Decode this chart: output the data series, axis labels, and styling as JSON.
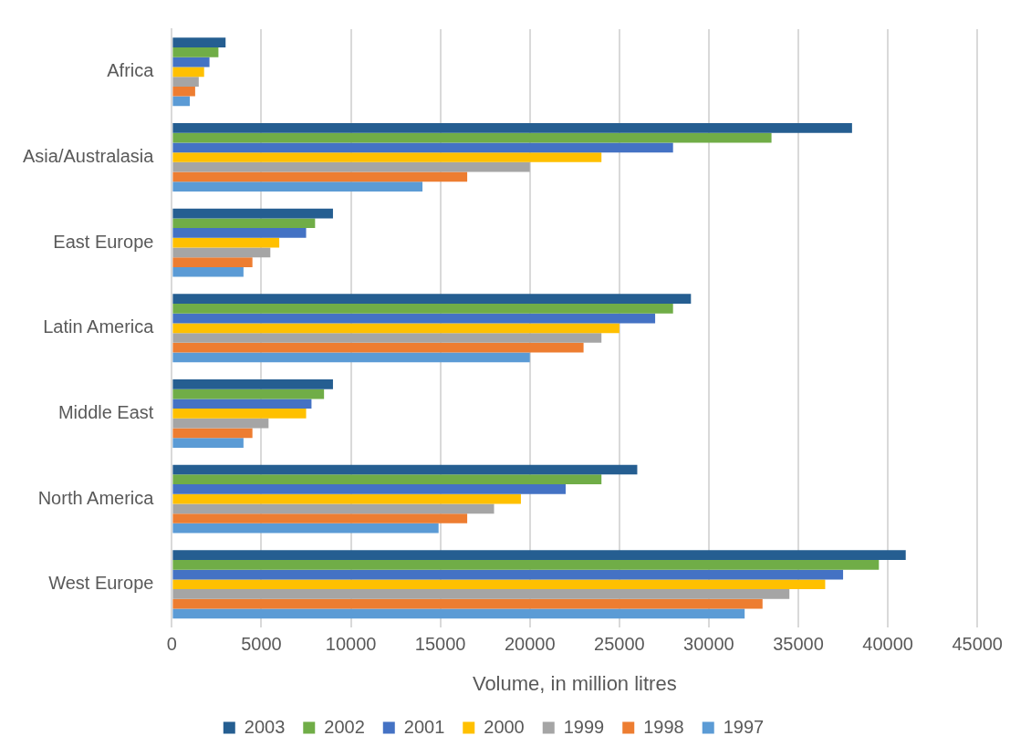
{
  "chart_data": {
    "type": "bar",
    "orientation": "horizontal",
    "xlabel": "Volume, in million litres",
    "categories": [
      "Africa",
      "Asia/Australasia",
      "East Europe",
      "Latin America",
      "Middle East",
      "North America",
      "West Europe"
    ],
    "series": [
      {
        "name": "2003",
        "color": "#255e91",
        "values": [
          3000,
          38000,
          9000,
          29000,
          9000,
          26000,
          41000
        ]
      },
      {
        "name": "2002",
        "color": "#70ad47",
        "values": [
          2600,
          33500,
          8000,
          28000,
          8500,
          24000,
          39500
        ]
      },
      {
        "name": "2001",
        "color": "#4472c4",
        "values": [
          2100,
          28000,
          7500,
          27000,
          7800,
          22000,
          37500
        ]
      },
      {
        "name": "2000",
        "color": "#ffc000",
        "values": [
          1800,
          24000,
          6000,
          25000,
          7500,
          19500,
          36500
        ]
      },
      {
        "name": "1999",
        "color": "#a5a5a5",
        "values": [
          1500,
          20000,
          5500,
          24000,
          5400,
          18000,
          34500
        ]
      },
      {
        "name": "1998",
        "color": "#ed7d31",
        "values": [
          1300,
          16500,
          4500,
          23000,
          4500,
          16500,
          33000
        ]
      },
      {
        "name": "1997",
        "color": "#5b9bd5",
        "values": [
          1000,
          14000,
          4000,
          20000,
          4000,
          14900,
          32000
        ]
      }
    ],
    "xlim": [
      0,
      45000
    ],
    "xticks": [
      0,
      5000,
      10000,
      15000,
      20000,
      25000,
      30000,
      35000,
      40000,
      45000
    ],
    "grid": "x",
    "legend": "bottom"
  }
}
